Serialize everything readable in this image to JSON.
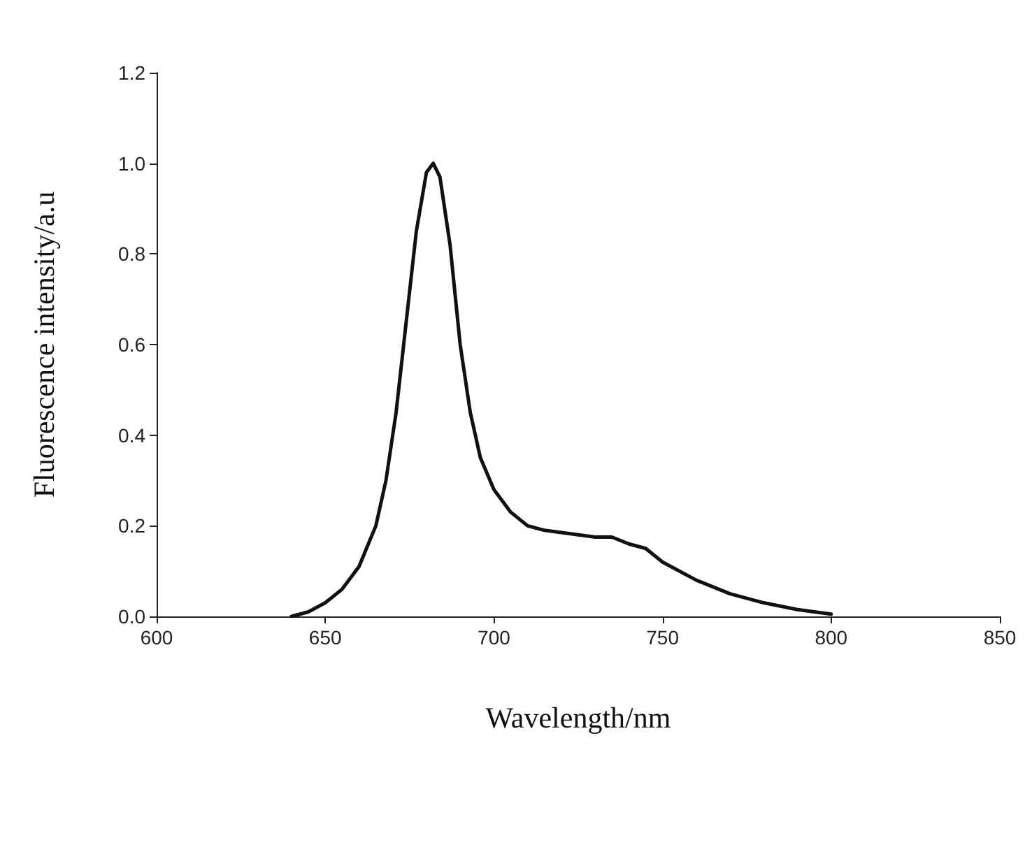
{
  "chart_data": {
    "type": "line",
    "xlabel": "Wavelength/nm",
    "ylabel": "Fluorescence intensity/a.u",
    "xlim": [
      600,
      850
    ],
    "xticks": [
      600,
      650,
      700,
      750,
      800,
      850
    ],
    "ylim": [
      0,
      1.2
    ],
    "yticks": [
      {
        "value": 0,
        "label": "0.0"
      },
      {
        "value": 0.2,
        "label": "0.2"
      },
      {
        "value": 0.4,
        "label": "0.4"
      },
      {
        "value": 0.6,
        "label": "0.6"
      },
      {
        "value": 0.8,
        "label": "0.8"
      },
      {
        "value": 1,
        "label": "1.0"
      },
      {
        "value": 1.2,
        "label": "1.2"
      }
    ],
    "grid": false,
    "marker": "none",
    "line_style": "solid",
    "series": [
      {
        "color": "#111111",
        "x": [
          640,
          645,
          650,
          655,
          660,
          665,
          668,
          671,
          674,
          677,
          680,
          682,
          684,
          687,
          690,
          693,
          696,
          700,
          705,
          710,
          715,
          720,
          725,
          730,
          735,
          740,
          745,
          750,
          760,
          770,
          780,
          790,
          800
        ],
        "values": [
          0,
          0.01,
          0.03,
          0.06,
          0.11,
          0.2,
          0.3,
          0.45,
          0.65,
          0.85,
          0.98,
          1.0,
          0.97,
          0.82,
          0.6,
          0.45,
          0.35,
          0.28,
          0.23,
          0.2,
          0.19,
          0.185,
          0.18,
          0.175,
          0.175,
          0.16,
          0.15,
          0.12,
          0.08,
          0.05,
          0.03,
          0.015,
          0.005
        ]
      }
    ]
  }
}
